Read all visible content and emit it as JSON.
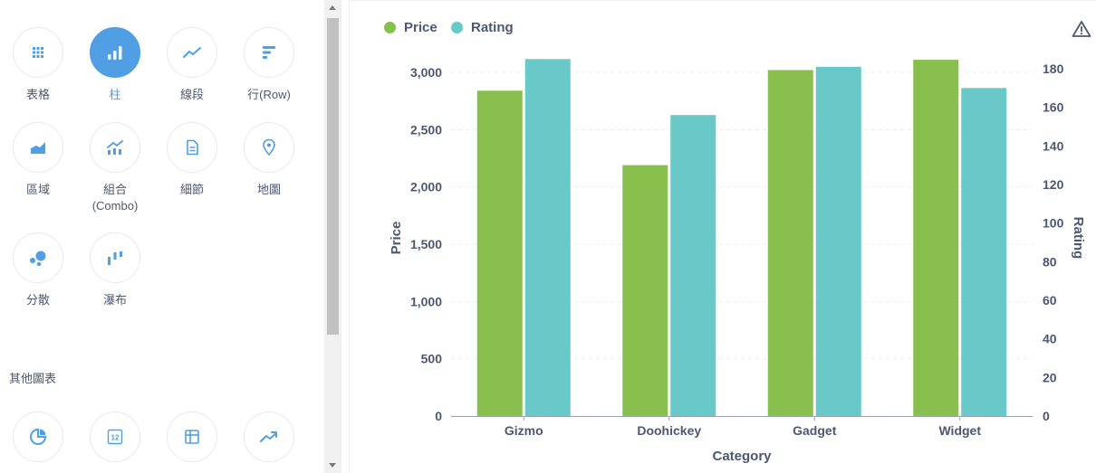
{
  "sidebar": {
    "items": [
      {
        "label": "表格",
        "icon": "table-grid-icon",
        "selected": false
      },
      {
        "label": "柱",
        "icon": "bar-chart-icon",
        "selected": true
      },
      {
        "label": "線段",
        "icon": "line-chart-icon",
        "selected": false
      },
      {
        "label": "行(Row)",
        "icon": "row-chart-icon",
        "selected": false
      },
      {
        "label": "區域",
        "icon": "area-chart-icon",
        "selected": false
      },
      {
        "label": "組合\n(Combo)",
        "icon": "combo-chart-icon",
        "selected": false
      },
      {
        "label": "細節",
        "icon": "detail-document-icon",
        "selected": false
      },
      {
        "label": "地圖",
        "icon": "map-pin-icon",
        "selected": false
      },
      {
        "label": "分散",
        "icon": "scatter-icon",
        "selected": false
      },
      {
        "label": "瀑布",
        "icon": "waterfall-icon",
        "selected": false
      }
    ],
    "other_title": "其他圖表",
    "other_items": [
      {
        "icon": "pie-chart-icon"
      },
      {
        "icon": "number-icon",
        "text": "12"
      },
      {
        "icon": "pivot-table-icon"
      },
      {
        "icon": "trend-icon"
      }
    ]
  },
  "colors": {
    "accent": "#509ee3",
    "price": "#88bf4d",
    "rating": "#69c8c8"
  },
  "chart_data": {
    "type": "bar",
    "categories": [
      "Gizmo",
      "Doohickey",
      "Gadget",
      "Widget"
    ],
    "series": [
      {
        "name": "Price",
        "axis": "left",
        "values": [
          2840,
          2190,
          3020,
          3110
        ]
      },
      {
        "name": "Rating",
        "axis": "right",
        "values": [
          185,
          156,
          181,
          170
        ]
      }
    ],
    "xlabel": "Category",
    "ylabel": "Price",
    "y2label": "Rating",
    "ylim": [
      0,
      3000
    ],
    "y2lim": [
      0,
      180
    ],
    "yticks": [
      "0",
      "500",
      "1,000",
      "1,500",
      "2,000",
      "2,500",
      "3,000"
    ],
    "y2ticks": [
      "0",
      "20",
      "40",
      "60",
      "80",
      "100",
      "120",
      "140",
      "160",
      "180"
    ],
    "legend": "top-left",
    "grid": true
  }
}
